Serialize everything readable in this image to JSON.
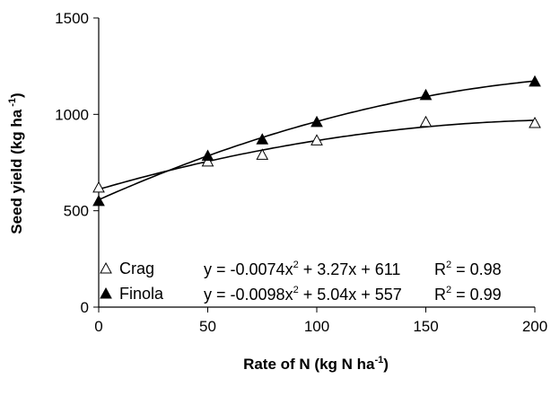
{
  "chart_data": {
    "type": "scatter",
    "xlabel": "Rate of N (kg N ha",
    "xlabel_sup": "-1",
    "xlabel_end": ")",
    "ylabel": "Seed yield (kg ha",
    "ylabel_sup": " -1",
    "ylabel_end": ")",
    "xlim": [
      0,
      200
    ],
    "ylim": [
      0,
      1500
    ],
    "x_ticks": [
      "0",
      "50",
      "100",
      "150",
      "200"
    ],
    "y_ticks": [
      "0",
      "500",
      "1000",
      "1500"
    ],
    "grid": false,
    "legend_position": "bottom-left",
    "series": [
      {
        "name": "Crag",
        "marker": "open-triangle",
        "x": [
          0,
          50,
          75,
          100,
          150,
          200
        ],
        "y": [
          620,
          755,
          790,
          865,
          960,
          955
        ],
        "fit": {
          "a": -0.0074,
          "b": 3.27,
          "c": 611
        },
        "equation_parts": [
          "y = -0.0074x",
          "2",
          " + 3.27x + 611"
        ],
        "r2_parts": [
          "R",
          "2",
          " = 0.98"
        ]
      },
      {
        "name": "Finola",
        "marker": "filled-triangle",
        "x": [
          0,
          50,
          75,
          100,
          150,
          200
        ],
        "y": [
          550,
          785,
          870,
          960,
          1100,
          1170
        ],
        "fit": {
          "a": -0.0098,
          "b": 5.04,
          "c": 557
        },
        "equation_parts": [
          "y = -0.0098x",
          "2",
          " + 5.04x + 557"
        ],
        "r2_parts": [
          "R",
          "2",
          " = 0.99"
        ]
      }
    ]
  }
}
